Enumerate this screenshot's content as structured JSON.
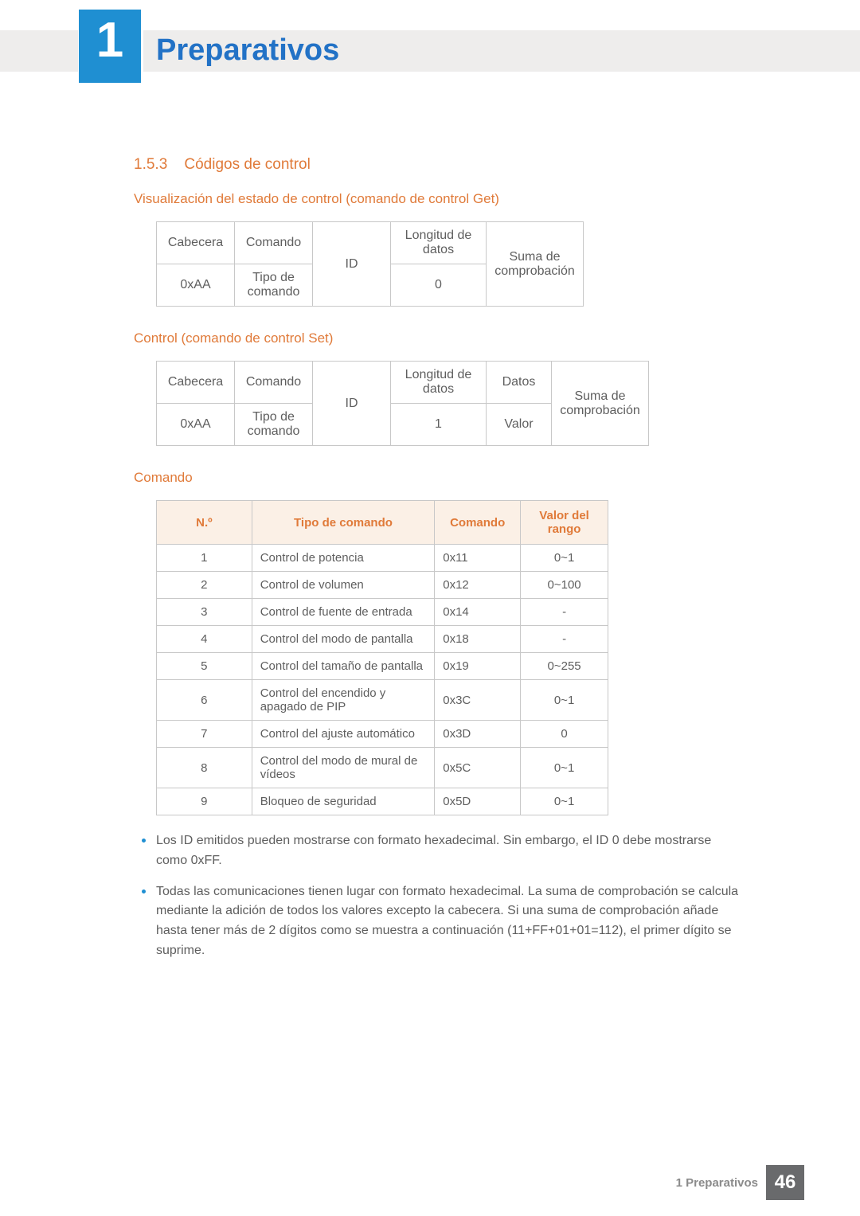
{
  "chapter_number": "1",
  "chapter_title": "Preparativos",
  "section": {
    "number": "1.5.3",
    "title": "Códigos de control"
  },
  "sub1": {
    "title": "Visualización del estado de control (comando de control Get)",
    "row1": {
      "c1": "Cabecera",
      "c2": "Comando",
      "c3": "ID",
      "c4": "Longitud de datos",
      "c5": "Suma de comprobación"
    },
    "row2": {
      "c1": "0xAA",
      "c2": "Tipo de comando",
      "c4": "0"
    }
  },
  "sub2": {
    "title": "Control (comando de control Set)",
    "row1": {
      "c1": "Cabecera",
      "c2": "Comando",
      "c3": "ID",
      "c4": "Longitud de datos",
      "c5": "Datos",
      "c6": "Suma de comprobación"
    },
    "row2": {
      "c1": "0xAA",
      "c2": "Tipo de comando",
      "c4": "1",
      "c5": "Valor"
    }
  },
  "sub3": {
    "title": "Comando",
    "headers": {
      "h1": "N.º",
      "h2": "Tipo de comando",
      "h3": "Comando",
      "h4": "Valor del rango"
    },
    "col_widths": {
      "c1": 120,
      "c2": 230,
      "c3": 108,
      "c4": 110
    },
    "rows": [
      {
        "n": "1",
        "tipo": "Control de potencia",
        "cmd": "0x11",
        "rango": "0~1"
      },
      {
        "n": "2",
        "tipo": "Control de volumen",
        "cmd": "0x12",
        "rango": "0~100"
      },
      {
        "n": "3",
        "tipo": "Control de fuente de entrada",
        "cmd": "0x14",
        "rango": "-"
      },
      {
        "n": "4",
        "tipo": "Control del modo de pantalla",
        "cmd": "0x18",
        "rango": "-"
      },
      {
        "n": "5",
        "tipo": "Control del tamaño de pantalla",
        "cmd": "0x19",
        "rango": "0~255"
      },
      {
        "n": "6",
        "tipo": "Control del encendido y apagado de PIP",
        "cmd": "0x3C",
        "rango": "0~1"
      },
      {
        "n": "7",
        "tipo": "Control del ajuste automático",
        "cmd": "0x3D",
        "rango": "0"
      },
      {
        "n": "8",
        "tipo": "Control del modo de mural de vídeos",
        "cmd": "0x5C",
        "rango": "0~1"
      },
      {
        "n": "9",
        "tipo": "Bloqueo de seguridad",
        "cmd": "0x5D",
        "rango": "0~1"
      }
    ]
  },
  "notes": [
    "Los ID emitidos pueden mostrarse con formato hexadecimal. Sin embargo, el ID 0 debe mostrarse como 0xFF.",
    "Todas las comunicaciones tienen lugar con formato hexadecimal. La suma de comprobación se calcula mediante la adición de todos los valores excepto la cabecera. Si una suma de comprobación añade hasta tener más de 2 dígitos como se muestra a continuación (11+FF+01+01=112), el primer dígito se suprime."
  ],
  "footer": {
    "label": "1 Preparativos",
    "page": "46"
  },
  "colors": {
    "accent_blue": "#2272c6",
    "badge_blue": "#1f8fd2",
    "accent_orange": "#e07a39",
    "header_band": "#eeedec",
    "table_header_bg": "#fbf0e6",
    "text_grey": "#5e5e5e",
    "border_grey": "#c8c8c8",
    "footer_bg": "#696a6c"
  }
}
